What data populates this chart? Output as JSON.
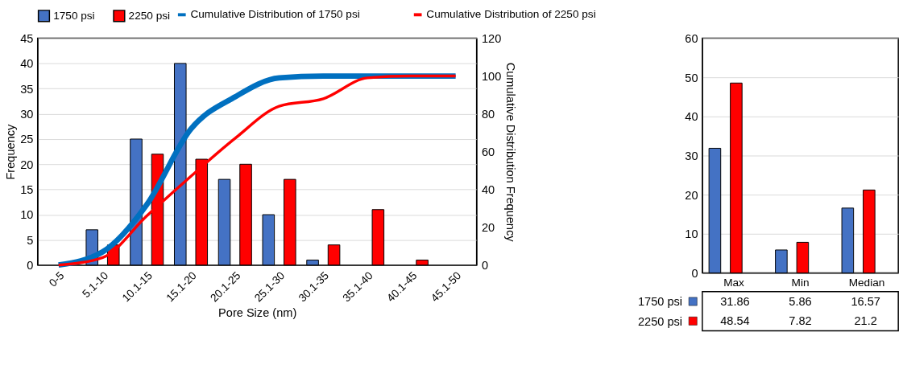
{
  "chart_data": [
    {
      "type": "bar",
      "categories": [
        "0-5",
        "5.1-10",
        "10.1-15",
        "15.1-20",
        "20.1-25",
        "25.1-30",
        "30.1-35",
        "35.1-40",
        "40.1-45",
        "45.1-50"
      ],
      "xlabel": "Pore Size (nm)",
      "ylabel": "Frequency",
      "y2label": "Cumulative Distribution Frequency",
      "ylim": [
        0,
        45
      ],
      "yticks": [
        0,
        5,
        10,
        15,
        20,
        25,
        30,
        35,
        40,
        45
      ],
      "y2lim": [
        0,
        120
      ],
      "y2ticks": [
        0,
        20,
        40,
        60,
        80,
        100,
        120
      ],
      "grid": "y",
      "legend": "top",
      "line_style": "solid",
      "series": [
        {
          "name": "1750 psi",
          "color": "#4472c4",
          "values": [
            0,
            7,
            25,
            40,
            17,
            10,
            1,
            0,
            0,
            0
          ]
        },
        {
          "name": "2250 psi",
          "color": "#ff0000",
          "values": [
            0,
            4,
            22,
            21,
            20,
            17,
            4,
            11,
            1,
            0
          ]
        },
        {
          "name": "Cumulative Distribution of 1750 psi",
          "type": "line",
          "axis": "y2",
          "color": "#0070c0",
          "values": [
            0,
            7,
            32,
            72,
            89,
            99,
            100,
            100,
            100,
            100
          ]
        },
        {
          "name": "Cumulative Distribution of 2250 psi",
          "type": "line",
          "axis": "y2",
          "color": "#ff0000",
          "values": [
            0,
            4,
            26,
            47,
            67,
            84,
            88,
            99,
            100,
            100
          ]
        }
      ]
    },
    {
      "type": "bar",
      "categories": [
        "Max",
        "Min",
        "Median"
      ],
      "ylim": [
        0,
        60
      ],
      "yticks": [
        0,
        10,
        20,
        30,
        40,
        50,
        60
      ],
      "grid": "y",
      "data_labels": true,
      "legend": "bottom left",
      "series": [
        {
          "name": "1750 psi",
          "color": "#4472c4",
          "values": [
            31.86,
            5.86,
            16.57
          ]
        },
        {
          "name": "2250 psi",
          "color": "#ff0000",
          "values": [
            48.54,
            7.82,
            21.2
          ]
        }
      ]
    }
  ]
}
